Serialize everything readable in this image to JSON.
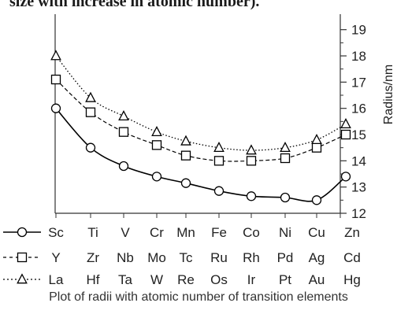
{
  "top_text": "size with increase in atomic number).",
  "caption": "Plot of radii with atomic number of transition elements",
  "chart_data": {
    "type": "line",
    "title": "",
    "ylabel": "Radius/nm",
    "xlabel": "",
    "ylim": [
      12,
      19.5
    ],
    "yticks": [
      12,
      13,
      14,
      15,
      16,
      17,
      18,
      19
    ],
    "grid": false,
    "legend": "bottom",
    "categories_rows": [
      [
        "Sc",
        "Ti",
        "V",
        "Cr",
        "Mn",
        "Fe",
        "Co",
        "Ni",
        "Cu",
        "Zn"
      ],
      [
        "Y",
        "Zr",
        "Nb",
        "Mo",
        "Tc",
        "Ru",
        "Rh",
        "Pd",
        "Ag",
        "Cd"
      ],
      [
        "La",
        "Hf",
        "Ta",
        "W",
        "Re",
        "Os",
        "Ir",
        "Pt",
        "Au",
        "Hg"
      ]
    ],
    "series": [
      {
        "marker": "circle",
        "line_style": "solid",
        "color": "#000000",
        "values": [
          16.0,
          14.5,
          13.8,
          13.4,
          13.15,
          12.85,
          12.65,
          12.6,
          12.5,
          13.4
        ]
      },
      {
        "marker": "square",
        "line_style": "dashed",
        "color": "#000000",
        "values": [
          17.1,
          15.85,
          15.1,
          14.6,
          14.2,
          14.0,
          14.0,
          14.1,
          14.5,
          15.0
        ]
      },
      {
        "marker": "triangle",
        "line_style": "dotted",
        "color": "#000000",
        "values": [
          18.0,
          16.4,
          15.7,
          15.1,
          14.75,
          14.5,
          14.4,
          14.5,
          14.8,
          15.4
        ]
      }
    ]
  }
}
